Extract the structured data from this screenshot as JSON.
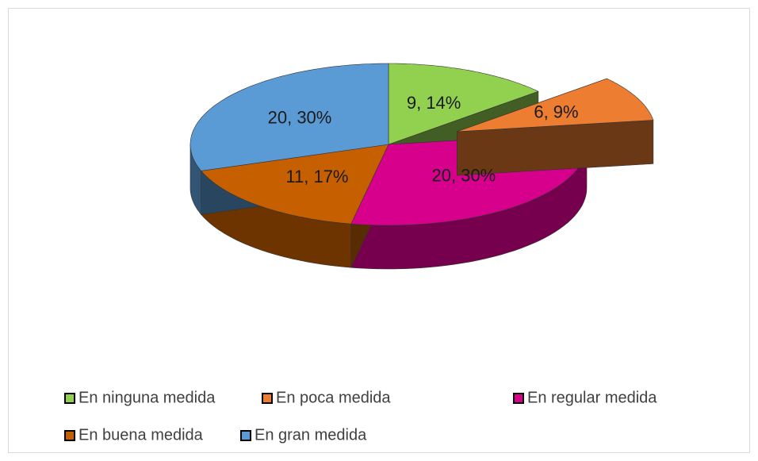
{
  "chart_data": {
    "type": "pie3d",
    "categories": [
      "En ninguna medida",
      "En poca medida",
      "En regular medida",
      "En buena medida",
      "En gran medida"
    ],
    "values": [
      9,
      6,
      20,
      11,
      20
    ],
    "value_labels": [
      "9, 14%",
      "6, 9%",
      "20, 30%",
      "11, 17%",
      "20, 30%"
    ],
    "colors": [
      "#92d050",
      "#ed7d31",
      "#d6008c",
      "#c65f00",
      "#5b9bd5"
    ],
    "exploded": [
      1
    ],
    "legend": "bottom"
  }
}
